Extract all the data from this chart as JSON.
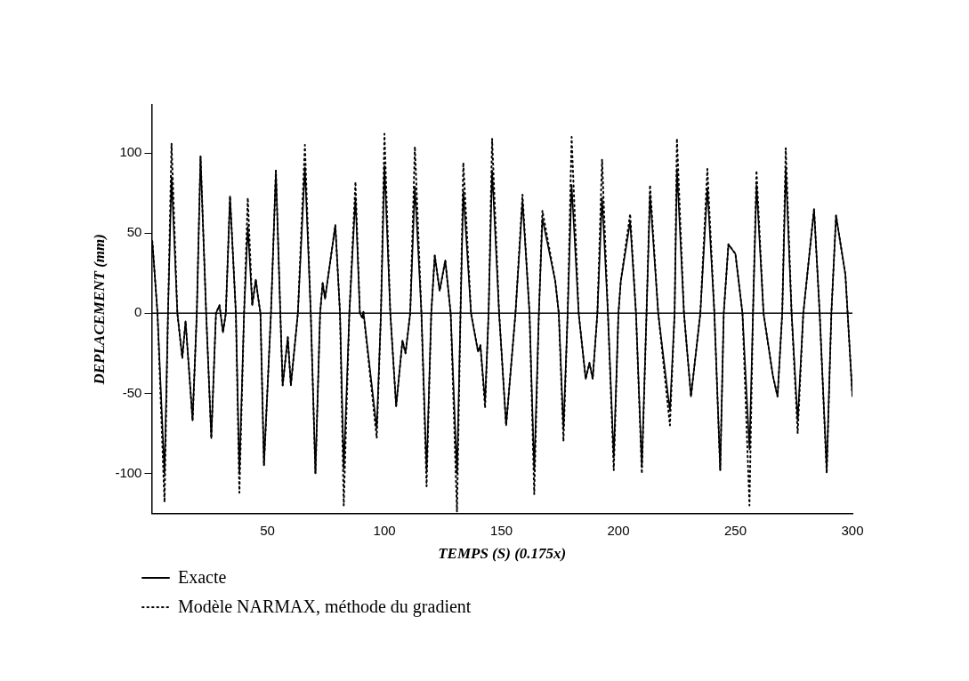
{
  "chart_data": {
    "type": "line",
    "xlabel": "TEMPS (S) (0.175x)",
    "ylabel": "DEPLACEMENT (mm)",
    "xlim": [
      0.5,
      300
    ],
    "xticks": [
      50,
      100,
      150,
      200,
      250,
      300
    ],
    "ylim": [
      -125,
      130
    ],
    "yticks": [
      -100,
      -50,
      0,
      50,
      100
    ],
    "grid": false,
    "legend": "bottom",
    "marker": "none",
    "ref_lines": [
      {
        "axis": "y",
        "value": 0,
        "color": "#000000"
      }
    ],
    "x": [
      0.8,
      3,
      6,
      7.5,
      9,
      11.5,
      13.6,
      15,
      18,
      19.8,
      21.4,
      23.8,
      26,
      28,
      29.5,
      31,
      32.2,
      34,
      36.5,
      38,
      40,
      41.6,
      43.5,
      45,
      46,
      47,
      48.5,
      51.5,
      53.6,
      55.5,
      56.5,
      58.7,
      60,
      63,
      66,
      68.5,
      70.5,
      72.5,
      73.6,
      74.6,
      79,
      81,
      82.6,
      85,
      87.6,
      89.5,
      90.6,
      91,
      96.7,
      98.5,
      100,
      102.5,
      105,
      107.7,
      109,
      111,
      113,
      115.8,
      118,
      120,
      121.5,
      123.6,
      126,
      128.3,
      131,
      132.5,
      133.7,
      137,
      140,
      141,
      143,
      144.5,
      146,
      149,
      152,
      156,
      159,
      162,
      164,
      166,
      167.5,
      173,
      174.5,
      176.5,
      178.3,
      180,
      183,
      186,
      187.6,
      189,
      191,
      193,
      195.5,
      198,
      200,
      201,
      205,
      207.5,
      210,
      212,
      213.5,
      217,
      222,
      224,
      225,
      228,
      231,
      235,
      238,
      241,
      243.5,
      245,
      247,
      250,
      253,
      256,
      257.5,
      259,
      262,
      266,
      268,
      270,
      271.5,
      274,
      276.6,
      279,
      283.6,
      286,
      289,
      291,
      293,
      297,
      300
    ],
    "series": [
      {
        "name": "Exacte",
        "color": "#000000",
        "line_style": "solid",
        "values": [
          45,
          0,
          -100,
          0,
          85,
          0,
          -28,
          -5,
          -67,
          0,
          98,
          0,
          -78,
          0,
          5,
          -12,
          0,
          73,
          0,
          -100,
          0,
          54,
          5,
          21,
          10,
          0,
          -95,
          0,
          89,
          0,
          -45,
          -15,
          -45,
          0,
          91,
          0,
          -100,
          0,
          19,
          9,
          55,
          0,
          -97,
          0,
          72,
          0,
          -3,
          1,
          -72,
          0,
          92,
          0,
          -58,
          -17,
          -25,
          0,
          79,
          0,
          -98,
          0,
          36,
          14,
          33,
          0,
          -100,
          0,
          76,
          0,
          -24,
          -20,
          -55,
          0,
          89,
          0,
          -70,
          0,
          70,
          0,
          -98,
          0,
          59,
          20,
          0,
          -72,
          0,
          80,
          0,
          -41,
          -31,
          -41,
          0,
          72,
          0,
          -90,
          0,
          20,
          57,
          0,
          -96,
          0,
          74,
          0,
          -61,
          0,
          90,
          0,
          -52,
          0,
          78,
          0,
          -98,
          0,
          43,
          37,
          0,
          -85,
          0,
          80,
          0,
          -39,
          -52,
          0,
          90,
          0,
          -67,
          0,
          65,
          0,
          -98,
          0,
          61,
          24,
          -52
        ]
      },
      {
        "name": "Modèle NARMAX, méthode du gradient",
        "color": "#000000",
        "line_style": "dotted",
        "values": [
          45,
          0,
          -118,
          0,
          106,
          0,
          -28,
          -5,
          -67,
          0,
          98,
          0,
          -78,
          0,
          5,
          -12,
          0,
          73,
          0,
          -112,
          0,
          72,
          5,
          21,
          10,
          0,
          -95,
          0,
          89,
          0,
          -45,
          -15,
          -45,
          0,
          105,
          0,
          -100,
          0,
          19,
          9,
          55,
          0,
          -120,
          0,
          82,
          0,
          -3,
          1,
          -78,
          0,
          112,
          0,
          -58,
          -17,
          -25,
          0,
          104,
          0,
          -108,
          0,
          36,
          14,
          33,
          0,
          -124,
          0,
          94,
          0,
          -24,
          -20,
          -59,
          0,
          109,
          0,
          -70,
          0,
          74,
          0,
          -113,
          0,
          64,
          20,
          0,
          -80,
          0,
          110,
          0,
          -41,
          -31,
          -41,
          0,
          96,
          0,
          -98,
          0,
          20,
          62,
          0,
          -100,
          0,
          80,
          0,
          -70,
          0,
          109,
          0,
          -52,
          0,
          90,
          0,
          -98,
          0,
          43,
          37,
          0,
          -120,
          0,
          89,
          0,
          -39,
          -52,
          0,
          103,
          0,
          -75,
          0,
          65,
          0,
          -100,
          0,
          61,
          24,
          -52
        ]
      }
    ]
  }
}
